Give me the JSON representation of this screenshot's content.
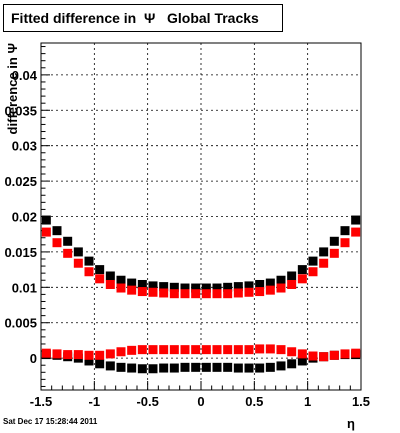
{
  "title": "Fitted difference in  Ψ   Global Tracks",
  "footer": "Sat Dec 17 15:28:44 2011",
  "chart_data": {
    "type": "scatter",
    "xlabel": "η",
    "ylabel": "difference in Ψ",
    "xlim": [
      -1.5,
      1.5
    ],
    "ylim": [
      -0.0045,
      0.0445
    ],
    "x_ticks": [
      "-1.5",
      "-1",
      "-0.5",
      "0",
      "0.5",
      "1",
      "1.5"
    ],
    "y_ticks": [
      "0",
      "0.005",
      "0.01",
      "0.015",
      "0.02",
      "0.025",
      "0.03",
      "0.035",
      "0.04"
    ],
    "grid": true,
    "colors": {
      "black_series": "#000000",
      "red_series": "#ff0000"
    },
    "series": [
      {
        "color": "black",
        "x": [
          -1.45,
          -1.35,
          -1.25,
          -1.15,
          -1.05,
          -0.95,
          -0.85,
          -0.75,
          -0.65,
          -0.55,
          -0.45,
          -0.35,
          -0.25,
          -0.15,
          -0.05,
          0.05,
          0.15,
          0.25,
          0.35,
          0.45,
          0.55,
          0.65,
          0.75,
          0.85,
          0.95,
          1.05,
          1.15,
          1.25,
          1.35,
          1.45
        ],
        "y": [
          0.0195,
          0.018,
          0.0165,
          0.015,
          0.0137,
          0.0125,
          0.0116,
          0.011,
          0.0106,
          0.0104,
          0.0102,
          0.0101,
          0.01,
          0.0099,
          0.0099,
          0.0099,
          0.0099,
          0.01,
          0.0101,
          0.0102,
          0.0104,
          0.0106,
          0.011,
          0.0116,
          0.0125,
          0.0137,
          0.015,
          0.0165,
          0.018,
          0.0195
        ]
      },
      {
        "color": "red",
        "x": [
          -1.45,
          -1.35,
          -1.25,
          -1.15,
          -1.05,
          -0.95,
          -0.85,
          -0.75,
          -0.65,
          -0.55,
          -0.45,
          -0.35,
          -0.25,
          -0.15,
          -0.05,
          0.05,
          0.15,
          0.25,
          0.35,
          0.45,
          0.55,
          0.65,
          0.75,
          0.85,
          0.95,
          1.05,
          1.15,
          1.25,
          1.35,
          1.45
        ],
        "y": [
          0.0178,
          0.0163,
          0.0148,
          0.0134,
          0.0122,
          0.0112,
          0.0104,
          0.0099,
          0.0096,
          0.0094,
          0.0093,
          0.0092,
          0.0091,
          0.0091,
          0.0091,
          0.0091,
          0.0091,
          0.0091,
          0.0092,
          0.0093,
          0.0094,
          0.0096,
          0.0099,
          0.0104,
          0.0112,
          0.0122,
          0.0134,
          0.0148,
          0.0163,
          0.0178
        ]
      },
      {
        "color": "black",
        "x": [
          -1.45,
          -1.35,
          -1.25,
          -1.15,
          -1.05,
          -0.95,
          -0.85,
          -0.75,
          -0.65,
          -0.55,
          -0.45,
          -0.35,
          -0.25,
          -0.15,
          -0.05,
          0.05,
          0.15,
          0.25,
          0.35,
          0.45,
          0.55,
          0.65,
          0.75,
          0.85,
          0.95,
          1.05,
          1.15,
          1.25,
          1.35,
          1.45
        ],
        "y": [
          0.0005,
          0.0004,
          0.0002,
          0.0,
          -0.0004,
          -0.0008,
          -0.0011,
          -0.0013,
          -0.0014,
          -0.0015,
          -0.0015,
          -0.0014,
          -0.0014,
          -0.0013,
          -0.0013,
          -0.0013,
          -0.0013,
          -0.0013,
          -0.0014,
          -0.0014,
          -0.0014,
          -0.0013,
          -0.0011,
          -0.0008,
          -0.0004,
          0.0,
          0.0002,
          0.0004,
          0.0005,
          0.0005
        ]
      },
      {
        "color": "red",
        "x": [
          -1.45,
          -1.35,
          -1.25,
          -1.15,
          -1.05,
          -0.95,
          -0.85,
          -0.75,
          -0.65,
          -0.55,
          -0.45,
          -0.35,
          -0.25,
          -0.15,
          -0.05,
          0.05,
          0.15,
          0.25,
          0.35,
          0.45,
          0.55,
          0.65,
          0.75,
          0.85,
          0.95,
          1.05,
          1.15,
          1.25,
          1.35,
          1.45
        ],
        "y": [
          0.0007,
          0.0006,
          0.0005,
          0.0005,
          0.0004,
          0.0004,
          0.0006,
          0.0009,
          0.0011,
          0.0012,
          0.0012,
          0.0012,
          0.0012,
          0.0012,
          0.0012,
          0.0012,
          0.0012,
          0.0012,
          0.0012,
          0.0012,
          0.0013,
          0.0013,
          0.0012,
          0.0009,
          0.0006,
          0.0003,
          0.0002,
          0.0004,
          0.0006,
          0.0007
        ]
      }
    ]
  }
}
